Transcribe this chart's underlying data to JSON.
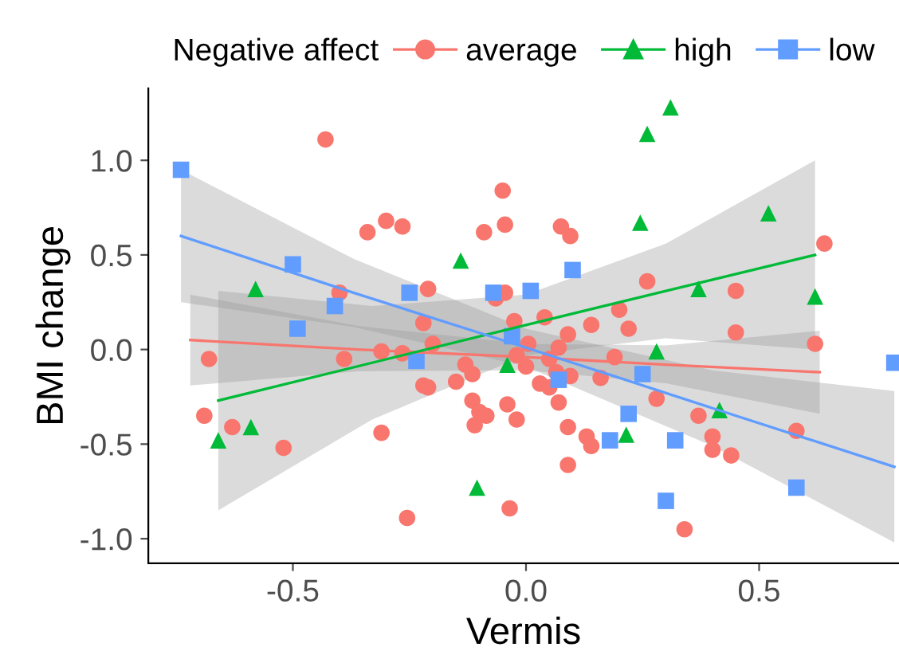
{
  "chart_data": {
    "type": "scatter",
    "xlabel": "Vermis",
    "ylabel": "BMI change",
    "legend_title": "Negative affect",
    "legend": "top",
    "grid": false,
    "xlim": [
      -0.81,
      0.8
    ],
    "ylim": [
      -1.13,
      1.38
    ],
    "xticks": [
      {
        "value": -0.5,
        "label": "-0.5"
      },
      {
        "value": 0,
        "label": "0.0"
      },
      0.5
    ],
    "yticks": [
      {
        "value": -1.0,
        "label": "-1.0"
      },
      {
        "value": -0.5,
        "label": "-0.5"
      },
      {
        "value": 0,
        "label": "0.0"
      },
      0.5,
      {
        "value": 1,
        "label": "1.0"
      }
    ],
    "series": [
      {
        "name": "average",
        "color": "#f8766d",
        "marker": "circle",
        "x": [
          -0.43,
          -0.05,
          -0.34,
          -0.3,
          -0.265,
          -0.09,
          -0.045,
          -0.4,
          -0.21,
          -0.065,
          -0.045,
          -0.22,
          -0.025,
          -0.2,
          -0.31,
          -0.265,
          -0.39,
          -0.68,
          -0.13,
          0.075,
          0.095,
          0.64,
          0.26,
          0.45,
          0.2,
          0.04,
          0.14,
          0.22,
          0.09,
          0.45,
          0.62,
          0.005,
          0.07,
          0.19,
          -0.69,
          -0.63,
          -0.52,
          -0.31,
          -0.22,
          -0.21,
          -0.15,
          -0.115,
          -0.115,
          -0.1,
          -0.085,
          -0.11,
          -0.04,
          -0.02,
          -0.035,
          -0.255,
          -0.02,
          0.0,
          0.05,
          0.065,
          0.095,
          0.03,
          0.05,
          0.16,
          0.07,
          0.09,
          0.13,
          0.14,
          0.09,
          0.28,
          0.37,
          0.4,
          0.4,
          0.44,
          0.58,
          0.34
        ],
        "values": [
          1.11,
          0.84,
          0.62,
          0.68,
          0.65,
          0.62,
          0.66,
          0.3,
          0.32,
          0.27,
          0.3,
          0.14,
          0.15,
          0.03,
          -0.01,
          -0.02,
          -0.05,
          -0.05,
          -0.08,
          0.65,
          0.6,
          0.56,
          0.36,
          0.31,
          0.21,
          0.17,
          0.13,
          0.11,
          0.08,
          0.09,
          0.03,
          0.03,
          0.01,
          -0.04,
          -0.35,
          -0.41,
          -0.52,
          -0.44,
          -0.19,
          -0.2,
          -0.17,
          -0.13,
          -0.27,
          -0.33,
          -0.35,
          -0.4,
          -0.29,
          -0.37,
          -0.84,
          -0.89,
          -0.03,
          -0.09,
          -0.05,
          -0.12,
          -0.14,
          -0.18,
          -0.2,
          -0.15,
          -0.28,
          -0.41,
          -0.46,
          -0.51,
          -0.61,
          -0.26,
          -0.35,
          -0.46,
          -0.53,
          -0.56,
          -0.43,
          -0.95
        ]
      },
      {
        "name": "high",
        "color": "#00ba38",
        "marker": "triangle",
        "x": [
          -0.58,
          -0.14,
          0.31,
          0.26,
          0.245,
          0.52,
          0.37,
          0.62,
          0.28,
          -0.66,
          -0.59,
          -0.105,
          -0.04,
          0.415,
          0.215
        ],
        "values": [
          0.32,
          0.47,
          1.28,
          1.14,
          0.67,
          0.72,
          0.32,
          0.28,
          -0.01,
          -0.48,
          -0.41,
          -0.73,
          -0.08,
          -0.32,
          -0.45
        ]
      },
      {
        "name": "low",
        "color": "#619cff",
        "marker": "square",
        "x": [
          -0.74,
          -0.5,
          -0.49,
          -0.41,
          -0.25,
          -0.235,
          -0.07,
          0.01,
          0.1,
          -0.03,
          0.07,
          0.25,
          0.22,
          0.18,
          0.32,
          0.3,
          0.58,
          0.79
        ],
        "values": [
          0.95,
          0.45,
          0.11,
          0.23,
          0.3,
          -0.06,
          0.3,
          0.31,
          0.42,
          0.07,
          -0.16,
          -0.13,
          -0.34,
          -0.48,
          -0.48,
          -0.8,
          -0.73,
          -0.07
        ]
      },
      {
        "type": "line",
        "color": "#f8766d",
        "x": [
          -0.72,
          -0.36,
          0.0,
          0.3,
          0.63
        ],
        "values": [
          0.05,
          0.0,
          -0.04,
          -0.08,
          -0.12
        ],
        "lower": [
          -0.19,
          -0.115,
          -0.11,
          -0.178,
          -0.34
        ],
        "upper": [
          0.29,
          0.125,
          0.03,
          0.022,
          0.1
        ]
      },
      {
        "type": "line",
        "color": "#00ba38",
        "x": [
          -0.66,
          -0.33,
          0.0,
          0.3,
          0.62
        ],
        "values": [
          -0.27,
          -0.07,
          0.13,
          0.31,
          0.5
        ],
        "lower": [
          -0.85,
          -0.37,
          -0.03,
          0.06,
          0.0
        ],
        "upper": [
          0.31,
          0.23,
          0.29,
          0.56,
          1.0
        ]
      },
      {
        "type": "line",
        "color": "#619cff",
        "x": [
          -0.74,
          -0.37,
          0.0,
          0.4,
          0.79
        ],
        "values": [
          0.6,
          0.3,
          0.01,
          -0.31,
          -0.62
        ],
        "lower": [
          0.25,
          0.12,
          -0.09,
          -0.51,
          -1.02
        ],
        "upper": [
          0.95,
          0.48,
          0.11,
          -0.11,
          -0.22
        ]
      }
    ]
  }
}
